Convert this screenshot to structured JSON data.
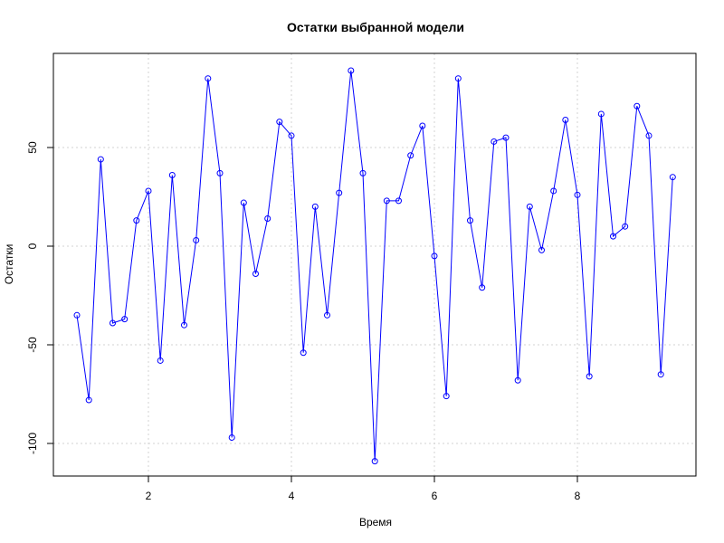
{
  "chart_data": {
    "type": "line",
    "title": "Остатки выбранной модели",
    "xlabel": "Время",
    "ylabel": "Остатки",
    "xlim": [
      0.9,
      9.4
    ],
    "ylim": [
      -109,
      89
    ],
    "xticks": [
      2,
      4,
      6,
      8
    ],
    "xtick_labels": [
      "2",
      "4",
      "6",
      "8"
    ],
    "yticks": [
      -100,
      -50,
      0,
      50
    ],
    "ytick_labels": [
      "-100",
      "-50",
      "0",
      "50"
    ],
    "grid": true,
    "legend": "none",
    "series": [
      {
        "color": "#0000ff",
        "marker": "open-circle",
        "x": [
          1.0,
          1.167,
          1.333,
          1.5,
          1.667,
          1.833,
          2.0,
          2.167,
          2.333,
          2.5,
          2.667,
          2.833,
          3.0,
          3.167,
          3.333,
          3.5,
          3.667,
          3.833,
          4.0,
          4.167,
          4.333,
          4.5,
          4.667,
          4.833,
          5.0,
          5.167,
          5.333,
          5.5,
          5.667,
          5.833,
          6.0,
          6.167,
          6.333,
          6.5,
          6.667,
          6.833,
          7.0,
          7.167,
          7.333,
          7.5,
          7.667,
          7.833,
          8.0,
          8.167,
          8.333,
          8.5,
          8.667,
          8.833,
          9.0,
          9.167,
          9.333
        ],
        "values": [
          -35,
          -78,
          44,
          -39,
          -37,
          13,
          28,
          -58,
          36,
          -40,
          3,
          85,
          37,
          -97,
          22,
          -14,
          14,
          63,
          56,
          -54,
          20,
          -35,
          27,
          89,
          37,
          -109,
          23,
          23,
          46,
          61,
          -5,
          -76,
          85,
          13,
          -21,
          53,
          55,
          -68,
          20,
          -2,
          28,
          64,
          26,
          -66,
          67,
          5,
          10,
          71,
          56,
          -65,
          35
        ]
      }
    ]
  }
}
